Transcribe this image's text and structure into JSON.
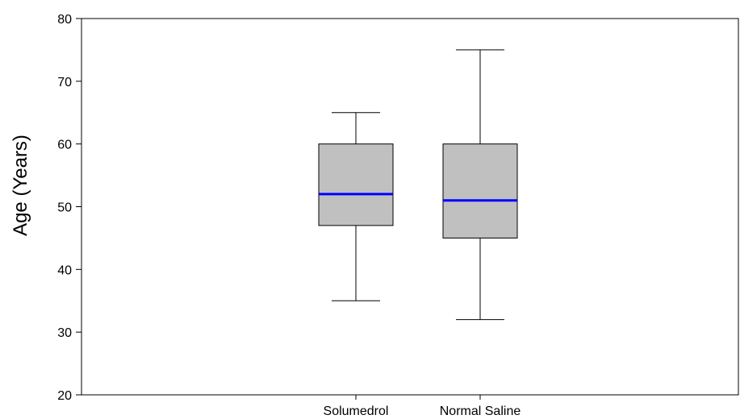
{
  "chart_data": {
    "type": "box",
    "title": "",
    "xlabel": "",
    "ylabel": "Age (Years)",
    "ylim": [
      20,
      80
    ],
    "yticks": [
      20,
      30,
      40,
      50,
      60,
      70,
      80
    ],
    "ytick_labels": [
      "20",
      "30",
      "40",
      "50",
      "60",
      "70",
      "80"
    ],
    "grid": false,
    "categories": [
      "Solumedrol",
      "Normal Saline"
    ],
    "boxes": [
      {
        "category": "Solumedrol",
        "min": 35,
        "q1": 47,
        "median": 52,
        "q3": 60,
        "max": 65
      },
      {
        "category": "Normal Saline",
        "min": 32,
        "q1": 45,
        "median": 51,
        "q3": 60,
        "max": 75
      }
    ],
    "colors": {
      "box_fill": "#c0c0c0",
      "median_line": "#0000ff",
      "stroke": "#000000"
    }
  }
}
